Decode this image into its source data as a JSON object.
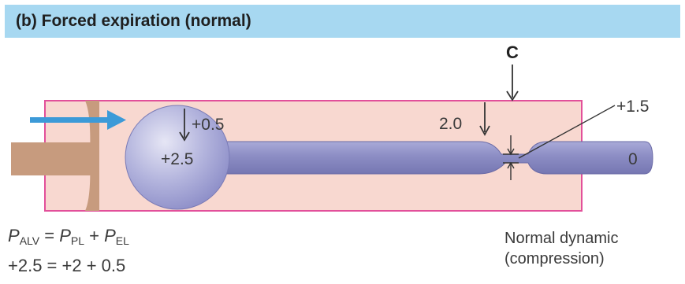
{
  "title": "(b) Forced expiration (normal)",
  "labels": {
    "compression_point": "C",
    "alveolar_elastic_pressure": "+0.5",
    "alveolar_pressure": "+2.5",
    "pleural_pressure_at_c": "2.0",
    "airway_pressure_at_c": "+1.5",
    "mouth_pressure": "0"
  },
  "equation": {
    "p": "P",
    "alv": "ALV",
    "equals": " = ",
    "pl": "PL",
    "plus": " + ",
    "el": "EL",
    "numeric": "+2.5 = +2 + 0.5"
  },
  "note": {
    "line1": "Normal dynamic",
    "line2": "(compression)"
  },
  "colors": {
    "title_bar": "#a7d8f1",
    "chest_box_fill": "#f8d8d0",
    "chest_box_border": "#e2509a",
    "alveolus": "#9b9cd3",
    "airway": "#8e8fc6",
    "chest_wall": "#c79b7e",
    "airflow_arrow": "#3c9ad8"
  },
  "icons": {
    "airflow": "right-arrow-icon",
    "pressure_arrows": "down-arrow-icon"
  }
}
